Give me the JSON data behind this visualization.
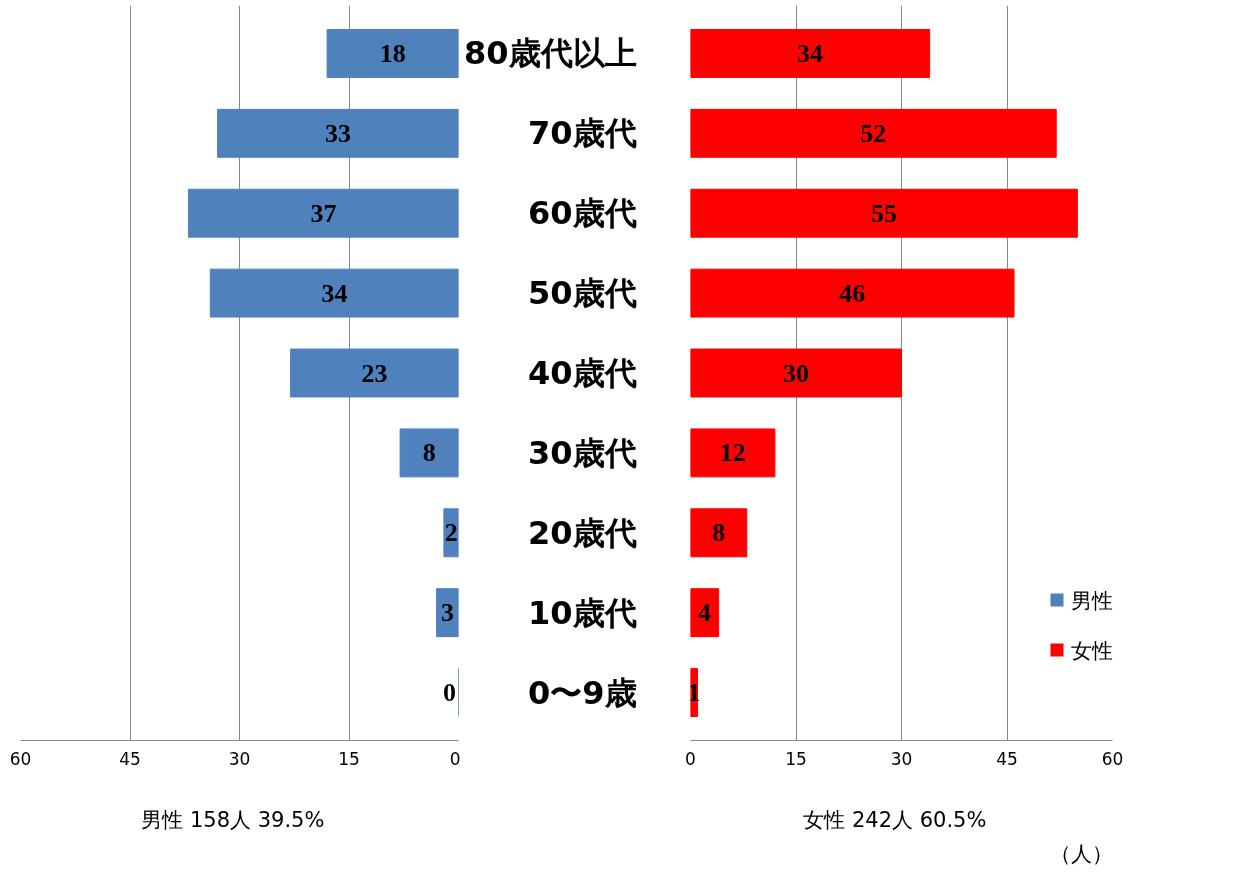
{
  "chart_data": [
    {
      "type": "bar",
      "orientation": "horizontal",
      "categories": [
        null,
        null,
        null,
        null,
        null,
        null,
        null,
        null,
        null
      ],
      "series": [
        {
          "name": "男性",
          "color": "#4f81bd",
          "values": [
            18,
            33,
            37,
            34,
            23,
            8,
            2,
            3,
            0
          ]
        }
      ],
      "xlim": [
        60,
        0
      ],
      "xticks": [
        60,
        45,
        30,
        15,
        0
      ],
      "grid": "x",
      "data_labels": true,
      "tick_labels": "x",
      "legend": "bottom right",
      "annotations": [
        "男性  158人  39.5%"
      ]
    },
    {
      "type": "bar",
      "orientation": "horizontal",
      "categories": [
        "80歳代以上",
        "70歳代",
        "60歳代",
        "50歳代",
        "40歳代",
        "30歳代",
        "20歳代",
        "10歳代",
        "0〜9歳"
      ],
      "series": [
        {
          "name": "女性",
          "color": "#ff0000",
          "values": [
            34,
            52,
            55,
            46,
            30,
            12,
            8,
            4,
            1
          ]
        }
      ],
      "xlim": [
        0,
        60
      ],
      "xticks": [
        0,
        15,
        30,
        45,
        60
      ],
      "grid": "x",
      "data_labels": true,
      "legend": "bottom right",
      "xlabel": "（人）",
      "annotations": [
        "女性  242人  60.5%"
      ]
    }
  ]
}
